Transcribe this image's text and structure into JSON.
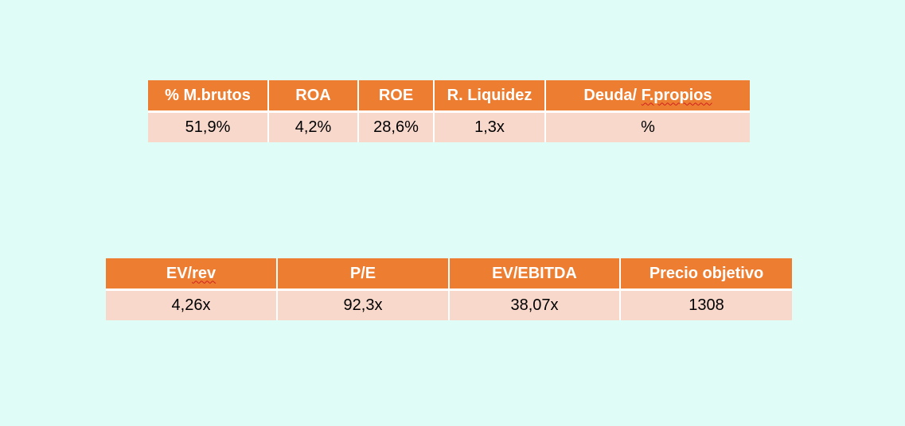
{
  "ratios_table": {
    "headers": [
      "% M.brutos",
      "ROA",
      "ROE",
      "R. Liquidez",
      "Deuda/ ",
      "F.propios"
    ],
    "values": [
      "51,9%",
      "4,2%",
      "28,6%",
      "1,3x",
      "%"
    ]
  },
  "valuation_table": {
    "headers": [
      "EV/",
      "rev",
      "P/E",
      "EV/EBITDA",
      "Precio objetivo"
    ],
    "values": [
      "4,26x",
      "92,3x",
      "38,07x",
      "1308"
    ]
  },
  "colors": {
    "background": "#e0fcf7",
    "header_fill": "#ed7d31",
    "row_fill": "#f9d8cc",
    "spellcheck_underline": "#d02020"
  }
}
